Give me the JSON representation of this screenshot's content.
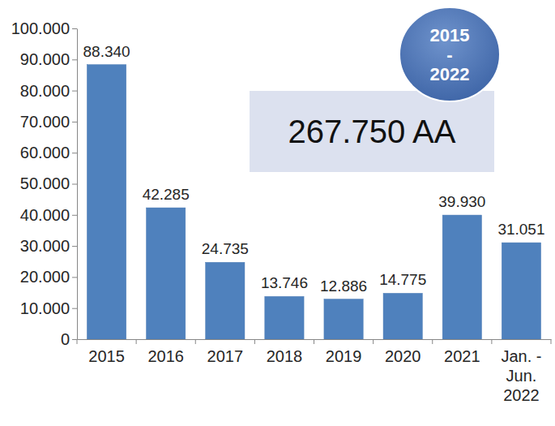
{
  "chart_data": {
    "type": "bar",
    "categories": [
      "2015",
      "2016",
      "2017",
      "2018",
      "2019",
      "2020",
      "2021",
      "Jan. - Jun. 2022"
    ],
    "values": [
      88340,
      42285,
      24735,
      13746,
      12886,
      14775,
      39930,
      31051
    ],
    "value_labels": [
      "88.340",
      "42.285",
      "24.735",
      "13.746",
      "12.886",
      "14.775",
      "39.930",
      "31.051"
    ],
    "color": "#4f81bd",
    "ylim": [
      0,
      100000
    ],
    "yticks": [
      {
        "value": 0,
        "label": "0"
      },
      {
        "value": 10000,
        "label": "10.000"
      },
      {
        "value": 20000,
        "label": "20.000"
      },
      {
        "value": 30000,
        "label": "30.000"
      },
      {
        "value": 40000,
        "label": "40.000"
      },
      {
        "value": 50000,
        "label": "50.000"
      },
      {
        "value": 60000,
        "label": "60.000"
      },
      {
        "value": 70000,
        "label": "70.000"
      },
      {
        "value": 80000,
        "label": "80.000"
      },
      {
        "value": 90000,
        "label": "90.000"
      },
      {
        "value": 100000,
        "label": "100.000"
      }
    ],
    "grid": false,
    "data_labels": true,
    "annotations": [
      "267.750 AA",
      "2015 - 2022"
    ]
  }
}
